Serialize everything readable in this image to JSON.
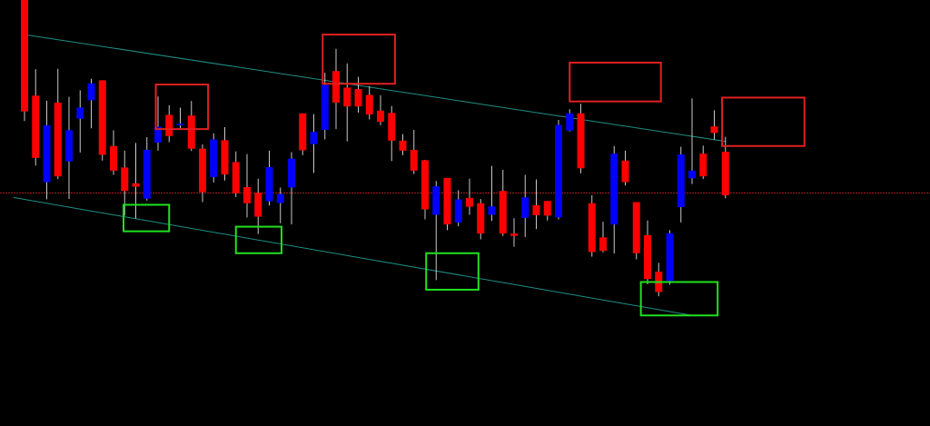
{
  "chart_data": {
    "type": "candlestick",
    "title": "",
    "xlabel": "",
    "ylabel": "",
    "grid": false,
    "ylim": [
      0,
      100
    ],
    "x_axis_labels": false,
    "y_axis_labels": false,
    "colors": {
      "background": "#000000",
      "bullish": "#0000ff",
      "bearish": "#ff0000",
      "wick": "#c8c8c8",
      "channel_line": "#1f8f86",
      "reference_line": "#b02020",
      "resistance_box": "#e02020",
      "support_box": "#20e020"
    },
    "candles": [
      {
        "o": 100.0,
        "h": 100.0,
        "l": 68.5,
        "c": 71.0,
        "dir": "down"
      },
      {
        "o": 75.1,
        "h": 82.0,
        "l": 56.9,
        "c": 58.9,
        "dir": "down"
      },
      {
        "o": 52.6,
        "h": 73.8,
        "l": 48.1,
        "c": 67.4,
        "dir": "up"
      },
      {
        "o": 73.3,
        "h": 82.1,
        "l": 53.4,
        "c": 54.1,
        "dir": "down"
      },
      {
        "o": 58.0,
        "h": 74.8,
        "l": 48.2,
        "c": 66.1,
        "dir": "up"
      },
      {
        "o": 69.1,
        "h": 76.5,
        "l": 60.3,
        "c": 72.0,
        "dir": "up"
      },
      {
        "o": 73.9,
        "h": 79.5,
        "l": 66.6,
        "c": 78.3,
        "dir": "up"
      },
      {
        "o": 79.1,
        "h": 79.1,
        "l": 58.2,
        "c": 59.7,
        "dir": "down"
      },
      {
        "o": 62.0,
        "h": 66.1,
        "l": 54.5,
        "c": 55.6,
        "dir": "down"
      },
      {
        "o": 56.4,
        "h": 60.8,
        "l": 43.9,
        "c": 50.3,
        "dir": "down"
      },
      {
        "o": 52.3,
        "h": 62.8,
        "l": 43.1,
        "c": 51.4,
        "dir": "down"
      },
      {
        "o": 48.3,
        "h": 64.3,
        "l": 47.8,
        "c": 61.0,
        "dir": "up"
      },
      {
        "o": 62.9,
        "h": 74.9,
        "l": 60.8,
        "c": 67.0,
        "dir": "up"
      },
      {
        "o": 70.1,
        "h": 72.6,
        "l": 63.0,
        "c": 64.6,
        "dir": "down"
      },
      {
        "o": 67.4,
        "h": 72.0,
        "l": 66.6,
        "c": 67.8,
        "dir": "up"
      },
      {
        "o": 69.9,
        "h": 73.7,
        "l": 60.7,
        "c": 61.3,
        "dir": "down"
      },
      {
        "o": 61.3,
        "h": 62.4,
        "l": 47.4,
        "c": 50.0,
        "dir": "down"
      },
      {
        "o": 53.9,
        "h": 65.3,
        "l": 52.5,
        "c": 63.7,
        "dir": "up"
      },
      {
        "o": 63.5,
        "h": 66.9,
        "l": 53.0,
        "c": 54.6,
        "dir": "down"
      },
      {
        "o": 57.8,
        "h": 60.6,
        "l": 48.7,
        "c": 49.7,
        "dir": "down"
      },
      {
        "o": 51.3,
        "h": 59.9,
        "l": 43.4,
        "c": 47.1,
        "dir": "down"
      },
      {
        "o": 49.8,
        "h": 53.5,
        "l": 39.1,
        "c": 43.6,
        "dir": "down"
      },
      {
        "o": 47.6,
        "h": 60.8,
        "l": 46.5,
        "c": 56.5,
        "dir": "up"
      },
      {
        "o": 47.2,
        "h": 51.2,
        "l": 41.9,
        "c": 49.5,
        "dir": "up"
      },
      {
        "o": 51.2,
        "h": 60.4,
        "l": 41.6,
        "c": 58.7,
        "dir": "up"
      },
      {
        "o": 70.5,
        "h": 70.5,
        "l": 59.6,
        "c": 60.9,
        "dir": "down"
      },
      {
        "o": 62.5,
        "h": 70.3,
        "l": 55.0,
        "c": 65.7,
        "dir": "up"
      },
      {
        "o": 66.2,
        "h": 81.1,
        "l": 63.7,
        "c": 77.9,
        "dir": "up"
      },
      {
        "o": 81.5,
        "h": 87.3,
        "l": 66.4,
        "c": 73.3,
        "dir": "down"
      },
      {
        "o": 77.2,
        "h": 83.5,
        "l": 63.2,
        "c": 72.3,
        "dir": "down"
      },
      {
        "o": 76.8,
        "h": 80.0,
        "l": 70.7,
        "c": 72.3,
        "dir": "down"
      },
      {
        "o": 75.3,
        "h": 77.6,
        "l": 68.9,
        "c": 70.2,
        "dir": "down"
      },
      {
        "o": 71.2,
        "h": 75.2,
        "l": 67.4,
        "c": 68.3,
        "dir": "down"
      },
      {
        "o": 70.6,
        "h": 72.4,
        "l": 58.1,
        "c": 63.4,
        "dir": "down"
      },
      {
        "o": 63.4,
        "h": 65.1,
        "l": 59.6,
        "c": 60.8,
        "dir": "down"
      },
      {
        "o": 61.0,
        "h": 66.2,
        "l": 54.7,
        "c": 55.6,
        "dir": "down"
      },
      {
        "o": 58.3,
        "h": 58.4,
        "l": 42.9,
        "c": 45.5,
        "dir": "down"
      },
      {
        "o": 44.1,
        "h": 52.9,
        "l": 27.1,
        "c": 51.5,
        "dir": "up"
      },
      {
        "o": 53.7,
        "h": 53.7,
        "l": 40.1,
        "c": 41.6,
        "dir": "down"
      },
      {
        "o": 42.1,
        "h": 50.5,
        "l": 41.1,
        "c": 48.1,
        "dir": "up"
      },
      {
        "o": 48.5,
        "h": 53.5,
        "l": 44.1,
        "c": 46.2,
        "dir": "down"
      },
      {
        "o": 47.1,
        "h": 48.2,
        "l": 37.7,
        "c": 39.2,
        "dir": "down"
      },
      {
        "o": 44.1,
        "h": 56.8,
        "l": 42.5,
        "c": 46.3,
        "dir": "up"
      },
      {
        "o": 50.3,
        "h": 55.8,
        "l": 38.6,
        "c": 39.2,
        "dir": "down"
      },
      {
        "o": 39.2,
        "h": 43.2,
        "l": 35.8,
        "c": 38.6,
        "dir": "down"
      },
      {
        "o": 43.3,
        "h": 54.5,
        "l": 38.3,
        "c": 48.6,
        "dir": "up"
      },
      {
        "o": 46.6,
        "h": 53.3,
        "l": 40.4,
        "c": 44.0,
        "dir": "down"
      },
      {
        "o": 47.7,
        "h": 47.7,
        "l": 42.6,
        "c": 43.9,
        "dir": "down"
      },
      {
        "o": 43.4,
        "h": 68.8,
        "l": 42.9,
        "c": 67.5,
        "dir": "up"
      },
      {
        "o": 66.0,
        "h": 71.6,
        "l": 65.8,
        "c": 70.5,
        "dir": "up"
      },
      {
        "o": 70.5,
        "h": 73.0,
        "l": 54.9,
        "c": 56.2,
        "dir": "down"
      },
      {
        "o": 47.1,
        "h": 49.2,
        "l": 33.2,
        "c": 34.4,
        "dir": "down"
      },
      {
        "o": 38.2,
        "h": 42.3,
        "l": 34.3,
        "c": 34.7,
        "dir": "down"
      },
      {
        "o": 41.6,
        "h": 62.0,
        "l": 34.0,
        "c": 60.0,
        "dir": "up"
      },
      {
        "o": 58.2,
        "h": 60.8,
        "l": 51.7,
        "c": 52.6,
        "dir": "down"
      },
      {
        "o": 47.4,
        "h": 47.4,
        "l": 32.5,
        "c": 34.1,
        "dir": "down"
      },
      {
        "o": 38.8,
        "h": 42.6,
        "l": 26.0,
        "c": 27.4,
        "dir": "down"
      },
      {
        "o": 29.3,
        "h": 31.6,
        "l": 22.9,
        "c": 24.0,
        "dir": "down"
      },
      {
        "o": 26.9,
        "h": 40.1,
        "l": 25.9,
        "c": 39.3,
        "dir": "up"
      },
      {
        "o": 46.1,
        "h": 61.8,
        "l": 42.1,
        "c": 59.8,
        "dir": "up"
      },
      {
        "o": 53.6,
        "h": 74.4,
        "l": 52.1,
        "c": 55.6,
        "dir": "up"
      },
      {
        "o": 60.0,
        "h": 62.1,
        "l": 53.4,
        "c": 54.1,
        "dir": "down"
      },
      {
        "o": 67.1,
        "h": 71.3,
        "l": 63.6,
        "c": 65.4,
        "dir": "down"
      },
      {
        "o": 60.5,
        "h": 64.4,
        "l": 48.4,
        "c": 49.2,
        "dir": "down"
      }
    ],
    "trendlines": [
      {
        "kind": "upper-channel",
        "from": {
          "x": 0,
          "y": 91.0
        },
        "to": {
          "x": 63,
          "y": 63.2
        }
      },
      {
        "kind": "lower-channel",
        "from": {
          "x": -1,
          "y": 48.6
        },
        "to": {
          "x": 60,
          "y": 17.9
        }
      }
    ],
    "horizontal_levels": [
      49.8
    ],
    "resistance_zones": [
      {
        "x_from": 11.8,
        "x_to": 16.5,
        "y_from": 66.4,
        "y_to": 78.0
      },
      {
        "x_from": 26.8,
        "x_to": 33.3,
        "y_from": 78.2,
        "y_to": 91.0
      },
      {
        "x_from": 49.0,
        "x_to": 57.2,
        "y_from": 73.6,
        "y_to": 83.7
      },
      {
        "x_from": 62.7,
        "x_to": 70.1,
        "y_from": 62.0,
        "y_to": 74.6
      }
    ],
    "support_zones": [
      {
        "x_from": 8.9,
        "x_to": 13.0,
        "y_from": 39.8,
        "y_to": 46.7
      },
      {
        "x_from": 19.0,
        "x_to": 23.1,
        "y_from": 34.1,
        "y_to": 41.0
      },
      {
        "x_from": 36.1,
        "x_to": 40.8,
        "y_from": 24.6,
        "y_to": 34.1
      },
      {
        "x_from": 55.4,
        "x_to": 62.3,
        "y_from": 17.9,
        "y_to": 26.6
      }
    ]
  }
}
